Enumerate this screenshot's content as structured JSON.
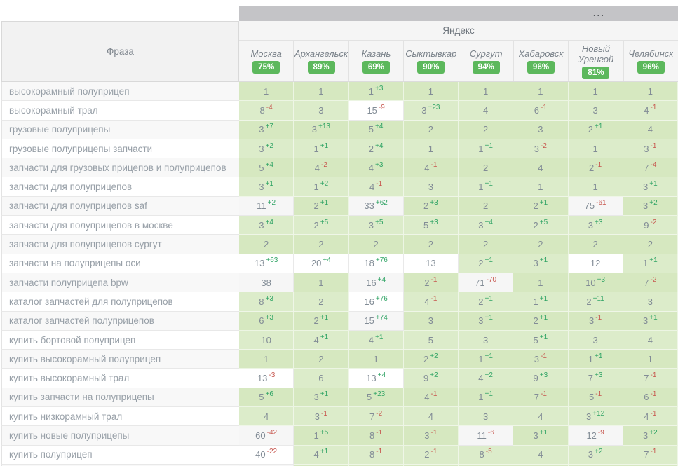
{
  "toolbar": {
    "overflow_label": "..."
  },
  "engine_header": {
    "label": "Яндекс"
  },
  "phrase_column": {
    "header": "Фраза"
  },
  "colors": {
    "badge_green": "#5cb85c",
    "positive_change": "#30a465",
    "negative_change": "#c7564e",
    "cell_green": "#d6e8c0",
    "cell_green_alt": "#dcecca",
    "top_bar_gray": "#c4c4c7"
  },
  "columns": [
    {
      "city": "Москва",
      "visibility": "75%"
    },
    {
      "city": "Архангельск",
      "visibility": "89%"
    },
    {
      "city": "Казань",
      "visibility": "69%"
    },
    {
      "city": "Сыктывкар",
      "visibility": "90%"
    },
    {
      "city": "Сургут",
      "visibility": "94%"
    },
    {
      "city": "Хабаровск",
      "visibility": "96%"
    },
    {
      "city": "Новый Уренгой",
      "visibility": "81%"
    },
    {
      "city": "Челябинск",
      "visibility": "96%"
    }
  ],
  "rows": [
    {
      "phrase": "высокорамный полуприцеп",
      "cells": [
        [
          "1",
          ""
        ],
        [
          "1",
          ""
        ],
        [
          "1",
          "+3"
        ],
        [
          "1",
          ""
        ],
        [
          "1",
          ""
        ],
        [
          "1",
          ""
        ],
        [
          "1",
          ""
        ],
        [
          "1",
          ""
        ]
      ]
    },
    {
      "phrase": "высокорамный трал",
      "cells": [
        [
          "8",
          "-4"
        ],
        [
          "3",
          ""
        ],
        [
          "15",
          "-9"
        ],
        [
          "3",
          "+23"
        ],
        [
          "4",
          ""
        ],
        [
          "6",
          "-1"
        ],
        [
          "3",
          ""
        ],
        [
          "4",
          "-1"
        ]
      ]
    },
    {
      "phrase": "грузовые полуприцепы",
      "cells": [
        [
          "3",
          "+7"
        ],
        [
          "3",
          "+13"
        ],
        [
          "5",
          "+4"
        ],
        [
          "2",
          ""
        ],
        [
          "2",
          ""
        ],
        [
          "3",
          ""
        ],
        [
          "2",
          "+1"
        ],
        [
          "4",
          ""
        ]
      ]
    },
    {
      "phrase": "грузовые полуприцепы запчасти",
      "cells": [
        [
          "3",
          "+2"
        ],
        [
          "1",
          "+1"
        ],
        [
          "2",
          "+4"
        ],
        [
          "1",
          ""
        ],
        [
          "1",
          "+1"
        ],
        [
          "3",
          "-2"
        ],
        [
          "1",
          ""
        ],
        [
          "3",
          "-1"
        ]
      ]
    },
    {
      "phrase": "запчасти для грузовых прицепов и полуприцепов",
      "cells": [
        [
          "5",
          "+4"
        ],
        [
          "4",
          "-2"
        ],
        [
          "4",
          "+3"
        ],
        [
          "4",
          "-1"
        ],
        [
          "2",
          ""
        ],
        [
          "4",
          ""
        ],
        [
          "2",
          "-1"
        ],
        [
          "7",
          "-4"
        ]
      ]
    },
    {
      "phrase": "запчасти для полуприцепов",
      "cells": [
        [
          "3",
          "+1"
        ],
        [
          "1",
          "+2"
        ],
        [
          "4",
          "-1"
        ],
        [
          "3",
          ""
        ],
        [
          "1",
          "+1"
        ],
        [
          "1",
          ""
        ],
        [
          "1",
          ""
        ],
        [
          "3",
          "+1"
        ]
      ]
    },
    {
      "phrase": "запчасти для полуприцепов saf",
      "cells": [
        [
          "11",
          "+2"
        ],
        [
          "2",
          "+1"
        ],
        [
          "33",
          "+62"
        ],
        [
          "2",
          "+3"
        ],
        [
          "2",
          ""
        ],
        [
          "2",
          "+1"
        ],
        [
          "75",
          "-61"
        ],
        [
          "3",
          "+2"
        ]
      ]
    },
    {
      "phrase": "запчасти для полуприцепов в москве",
      "cells": [
        [
          "3",
          "+4"
        ],
        [
          "2",
          "+5"
        ],
        [
          "3",
          "+5"
        ],
        [
          "5",
          "+3"
        ],
        [
          "3",
          "+4"
        ],
        [
          "2",
          "+5"
        ],
        [
          "3",
          "+3"
        ],
        [
          "9",
          "-2"
        ]
      ]
    },
    {
      "phrase": "запчасти для полуприцепов сургут",
      "cells": [
        [
          "2",
          ""
        ],
        [
          "2",
          ""
        ],
        [
          "2",
          ""
        ],
        [
          "2",
          ""
        ],
        [
          "2",
          ""
        ],
        [
          "2",
          ""
        ],
        [
          "2",
          ""
        ],
        [
          "2",
          ""
        ]
      ]
    },
    {
      "phrase": "запчасти на полуприцепы оси",
      "cells": [
        [
          "13",
          "+63"
        ],
        [
          "20",
          "+4"
        ],
        [
          "18",
          "+76"
        ],
        [
          "13",
          ""
        ],
        [
          "2",
          "+1"
        ],
        [
          "3",
          "+1"
        ],
        [
          "12",
          ""
        ],
        [
          "1",
          "+1"
        ]
      ]
    },
    {
      "phrase": "запчасти полуприцепа bpw",
      "cells": [
        [
          "38",
          ""
        ],
        [
          "1",
          ""
        ],
        [
          "16",
          "+4"
        ],
        [
          "2",
          "-1"
        ],
        [
          "71",
          "-70"
        ],
        [
          "1",
          ""
        ],
        [
          "10",
          "+3"
        ],
        [
          "7",
          "-2"
        ]
      ]
    },
    {
      "phrase": "каталог запчастей для полуприцепов",
      "cells": [
        [
          "8",
          "+3"
        ],
        [
          "2",
          ""
        ],
        [
          "16",
          "+76"
        ],
        [
          "4",
          "-1"
        ],
        [
          "2",
          "+1"
        ],
        [
          "1",
          "+1"
        ],
        [
          "2",
          "+11"
        ],
        [
          "3",
          ""
        ]
      ]
    },
    {
      "phrase": "каталог запчастей полуприцепов",
      "cells": [
        [
          "6",
          "+3"
        ],
        [
          "2",
          "+1"
        ],
        [
          "15",
          "+74"
        ],
        [
          "3",
          ""
        ],
        [
          "3",
          "+1"
        ],
        [
          "2",
          "+1"
        ],
        [
          "3",
          "-1"
        ],
        [
          "3",
          "+1"
        ]
      ]
    },
    {
      "phrase": "купить бортовой полуприцеп",
      "cells": [
        [
          "10",
          ""
        ],
        [
          "4",
          "+1"
        ],
        [
          "4",
          "+1"
        ],
        [
          "5",
          ""
        ],
        [
          "3",
          ""
        ],
        [
          "5",
          "+1"
        ],
        [
          "3",
          ""
        ],
        [
          "4",
          ""
        ]
      ]
    },
    {
      "phrase": "купить высокорамный полуприцеп",
      "cells": [
        [
          "1",
          ""
        ],
        [
          "2",
          ""
        ],
        [
          "1",
          ""
        ],
        [
          "2",
          "+2"
        ],
        [
          "1",
          "+1"
        ],
        [
          "3",
          "-1"
        ],
        [
          "1",
          "+1"
        ],
        [
          "1",
          ""
        ]
      ]
    },
    {
      "phrase": "купить высокорамный трал",
      "cells": [
        [
          "13",
          "-3"
        ],
        [
          "6",
          ""
        ],
        [
          "13",
          "+4"
        ],
        [
          "9",
          "+2"
        ],
        [
          "4",
          "+2"
        ],
        [
          "9",
          "+3"
        ],
        [
          "7",
          "+3"
        ],
        [
          "7",
          "-1"
        ]
      ]
    },
    {
      "phrase": "купить запчасти на полуприцепы",
      "cells": [
        [
          "5",
          "+6"
        ],
        [
          "3",
          "+1"
        ],
        [
          "5",
          "+23"
        ],
        [
          "4",
          "-1"
        ],
        [
          "1",
          "+1"
        ],
        [
          "7",
          "-1"
        ],
        [
          "5",
          "-1"
        ],
        [
          "6",
          "-1"
        ]
      ]
    },
    {
      "phrase": "купить низкорамный трал",
      "cells": [
        [
          "4",
          ""
        ],
        [
          "3",
          "-1"
        ],
        [
          "7",
          "-2"
        ],
        [
          "4",
          ""
        ],
        [
          "3",
          ""
        ],
        [
          "4",
          ""
        ],
        [
          "3",
          "+12"
        ],
        [
          "4",
          "-1"
        ]
      ]
    },
    {
      "phrase": "купить новые полуприцепы",
      "cells": [
        [
          "60",
          "-42"
        ],
        [
          "1",
          "+5"
        ],
        [
          "8",
          "-1"
        ],
        [
          "3",
          "-1"
        ],
        [
          "11",
          "-6"
        ],
        [
          "3",
          "+1"
        ],
        [
          "12",
          "-9"
        ],
        [
          "3",
          "+2"
        ]
      ]
    },
    {
      "phrase": "купить полуприцеп",
      "cells": [
        [
          "40",
          "-22"
        ],
        [
          "4",
          "+1"
        ],
        [
          "8",
          "-1"
        ],
        [
          "2",
          "-1"
        ],
        [
          "8",
          "-5"
        ],
        [
          "4",
          ""
        ],
        [
          "3",
          "+2"
        ],
        [
          "7",
          "-1"
        ]
      ]
    }
  ]
}
